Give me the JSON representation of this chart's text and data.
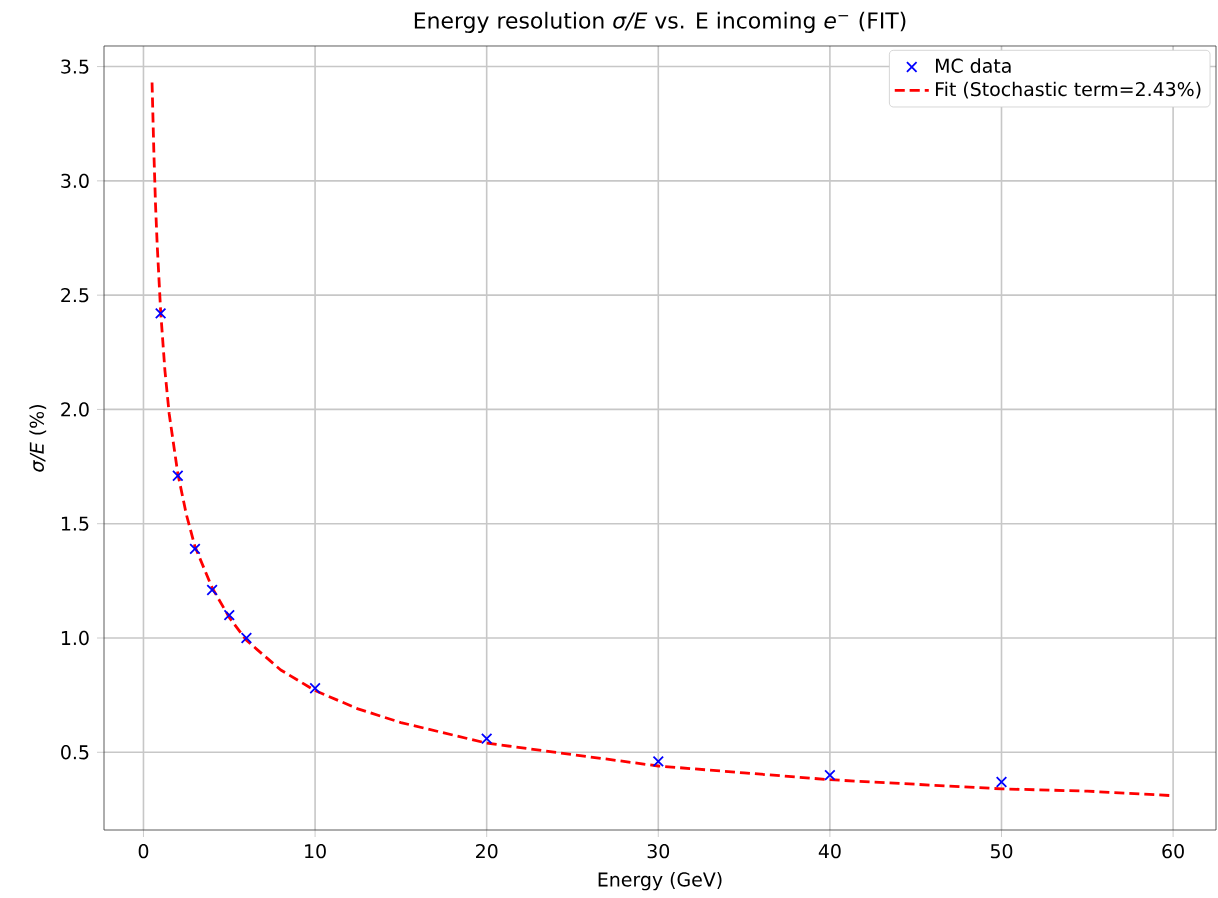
{
  "chart_data": {
    "type": "scatter",
    "title": "Energy resolution *σ/E* vs. E incoming *e*$^{−}$ (FIT)",
    "xlabel": "Energy (GeV)",
    "ylabel": "*σ/E* (%)",
    "xlim": [
      -2.3,
      62.5
    ],
    "ylim": [
      0.16,
      3.59
    ],
    "xticks": [
      0,
      10,
      20,
      30,
      40,
      50,
      60
    ],
    "yticks": [
      {
        "value": 0.5,
        "label": "0.5"
      },
      {
        "value": 1.0,
        "label": "1.0"
      },
      {
        "value": 1.5,
        "label": "1.5"
      },
      {
        "value": 2.0,
        "label": "2.0"
      },
      {
        "value": 2.5,
        "label": "2.5"
      },
      {
        "value": 3.0,
        "label": "3.0"
      },
      {
        "value": 3.5,
        "label": "3.5"
      }
    ],
    "grid": true,
    "legend": "top right",
    "series": [
      {
        "name": "MC data",
        "marker": "cross",
        "color": "#0000ff",
        "x": [
          1,
          2,
          3,
          4,
          5,
          6,
          10,
          20,
          30,
          40,
          50
        ],
        "values": [
          2.42,
          1.71,
          1.39,
          1.21,
          1.1,
          1.0,
          0.78,
          0.56,
          0.46,
          0.4,
          0.37
        ]
      },
      {
        "name": "Fit (Stochastic term=2.43%)",
        "type": "line",
        "line_style": "dashed",
        "marker": "none",
        "color": "#ff0000",
        "x": [
          0.5,
          0.6,
          0.7,
          0.8,
          1,
          1.25,
          1.5,
          2,
          2.5,
          3,
          4,
          5,
          6,
          8,
          10,
          12.5,
          15,
          20,
          25,
          30,
          35,
          40,
          45,
          50,
          55,
          60
        ],
        "values": [
          3.43,
          3.14,
          2.9,
          2.72,
          2.43,
          2.17,
          1.98,
          1.72,
          1.54,
          1.4,
          1.22,
          1.09,
          0.99,
          0.86,
          0.77,
          0.69,
          0.63,
          0.54,
          0.49,
          0.44,
          0.41,
          0.38,
          0.36,
          0.34,
          0.33,
          0.31
        ]
      }
    ]
  }
}
